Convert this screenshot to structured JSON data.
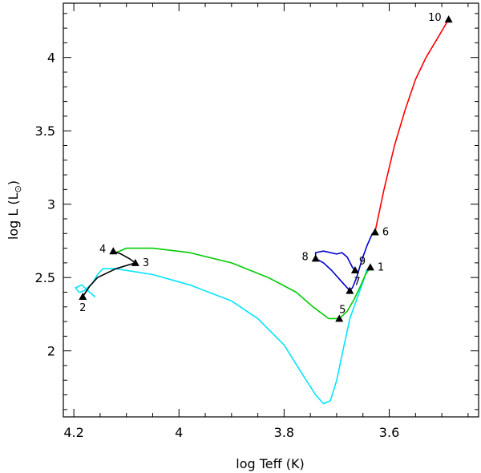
{
  "chart_data": {
    "type": "line",
    "title": "",
    "xlabel": "log Teff (K)",
    "ylabel_main": "log L (L",
    "ylabel_sun": "⊙",
    "ylabel_close": ")",
    "xlim": [
      4.22,
      3.43
    ],
    "ylim": [
      1.55,
      4.37
    ],
    "x_ticks": [
      {
        "value": 4.2,
        "label": "4.2"
      },
      {
        "value": 4.0,
        "label": "4"
      },
      {
        "value": 3.8,
        "label": "3.8"
      },
      {
        "value": 3.6,
        "label": "3.6"
      }
    ],
    "y_ticks": [
      {
        "value": 2.0,
        "label": "2"
      },
      {
        "value": 2.5,
        "label": "2.5"
      },
      {
        "value": 3.0,
        "label": "3"
      },
      {
        "value": 3.5,
        "label": "3.5"
      },
      {
        "value": 4.0,
        "label": "4"
      }
    ],
    "x_minor_step": 0.05,
    "y_minor_step": 0.1,
    "series": [
      {
        "color": "#ff0000",
        "points": [
          [
            3.627,
            2.81
          ],
          [
            3.61,
            3.1
          ],
          [
            3.59,
            3.4
          ],
          [
            3.57,
            3.64
          ],
          [
            3.55,
            3.85
          ],
          [
            3.53,
            4.0
          ],
          [
            3.505,
            4.15
          ],
          [
            3.487,
            4.26
          ]
        ]
      },
      {
        "color": "#00e5ff",
        "points": [
          [
            4.16,
            2.37
          ],
          [
            4.17,
            2.4
          ],
          [
            4.185,
            2.45
          ],
          [
            4.197,
            2.43
          ],
          [
            4.19,
            2.4
          ],
          [
            4.18,
            2.41
          ],
          [
            4.165,
            2.46
          ],
          [
            4.155,
            2.52
          ],
          [
            4.145,
            2.56
          ],
          [
            4.12,
            2.56
          ],
          [
            4.05,
            2.52
          ],
          [
            3.98,
            2.45
          ],
          [
            3.9,
            2.34
          ],
          [
            3.85,
            2.22
          ],
          [
            3.8,
            2.04
          ],
          [
            3.765,
            1.84
          ],
          [
            3.74,
            1.7
          ],
          [
            3.725,
            1.64
          ],
          [
            3.712,
            1.66
          ],
          [
            3.7,
            1.8
          ],
          [
            3.687,
            2.02
          ],
          [
            3.675,
            2.22
          ],
          [
            3.665,
            2.32
          ],
          [
            3.655,
            2.42
          ],
          [
            3.648,
            2.49
          ],
          [
            3.643,
            2.55
          ]
        ]
      },
      {
        "color": "#00cc00",
        "points": [
          [
            4.12,
            2.67
          ],
          [
            4.1,
            2.7
          ],
          [
            4.05,
            2.7
          ],
          [
            3.98,
            2.67
          ],
          [
            3.9,
            2.6
          ],
          [
            3.83,
            2.5
          ],
          [
            3.777,
            2.4
          ],
          [
            3.745,
            2.3
          ],
          [
            3.715,
            2.22
          ],
          [
            3.695,
            2.22
          ],
          [
            3.68,
            2.27
          ],
          [
            3.667,
            2.35
          ],
          [
            3.655,
            2.44
          ],
          [
            3.645,
            2.52
          ],
          [
            3.636,
            2.57
          ]
        ]
      },
      {
        "color": "#0000cc",
        "points": [
          [
            3.74,
            2.63
          ],
          [
            3.725,
            2.6
          ],
          [
            3.71,
            2.55
          ],
          [
            3.69,
            2.47
          ],
          [
            3.675,
            2.41
          ],
          [
            3.67,
            2.43
          ],
          [
            3.662,
            2.5
          ],
          [
            3.652,
            2.62
          ],
          [
            3.642,
            2.72
          ],
          [
            3.632,
            2.8
          ],
          [
            3.627,
            2.81
          ]
        ]
      },
      {
        "color": "#0000cc",
        "points": [
          [
            3.74,
            2.63
          ],
          [
            3.74,
            2.67
          ],
          [
            3.725,
            2.68
          ],
          [
            3.7,
            2.66
          ],
          [
            3.69,
            2.67
          ],
          [
            3.68,
            2.64
          ],
          [
            3.67,
            2.57
          ],
          [
            3.665,
            2.55
          ]
        ]
      },
      {
        "color": "#000000",
        "points": [
          [
            4.183,
            2.37
          ],
          [
            4.17,
            2.44
          ],
          [
            4.155,
            2.5
          ],
          [
            4.12,
            2.56
          ],
          [
            4.083,
            2.6
          ],
          [
            4.095,
            2.63
          ],
          [
            4.11,
            2.66
          ],
          [
            4.125,
            2.68
          ]
        ]
      }
    ],
    "markers": [
      {
        "label": "1",
        "x": 3.636,
        "y": 2.57,
        "anchor": "right"
      },
      {
        "label": "2",
        "x": 4.183,
        "y": 2.37,
        "anchor": "below"
      },
      {
        "label": "3",
        "x": 4.083,
        "y": 2.6,
        "anchor": "right"
      },
      {
        "label": "4",
        "x": 4.125,
        "y": 2.68,
        "anchor": "left"
      },
      {
        "label": "5",
        "x": 3.695,
        "y": 2.22,
        "anchor": "above"
      },
      {
        "label": "6",
        "x": 3.627,
        "y": 2.81,
        "anchor": "right"
      },
      {
        "label": "7",
        "x": 3.675,
        "y": 2.41,
        "anchor": "above-right"
      },
      {
        "label": "8",
        "x": 3.74,
        "y": 2.63,
        "anchor": "left"
      },
      {
        "label": "9",
        "x": 3.665,
        "y": 2.55,
        "anchor": "above-right"
      },
      {
        "label": "10",
        "x": 3.487,
        "y": 4.26,
        "anchor": "left"
      }
    ]
  }
}
